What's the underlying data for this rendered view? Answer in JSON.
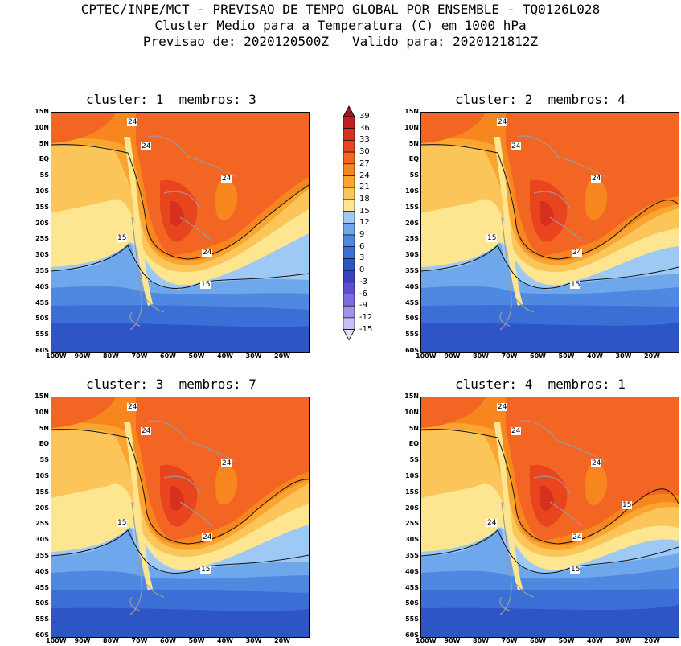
{
  "header": {
    "line1": "CPTEC/INPE/MCT - PREVISAO DE TEMPO GLOBAL POR ENSEMBLE - TQ0126L028",
    "line2": "Cluster Medio para a Temperatura (C) em 1000 hPa",
    "line3": "Previsao de: 2020120500Z   Valido para: 2020121812Z"
  },
  "panels": [
    {
      "title": "cluster: 1  membros: 3",
      "contour_labels": [
        "24",
        "24",
        "24",
        "24",
        "15",
        "15"
      ]
    },
    {
      "title": "cluster: 2  membros: 4",
      "contour_labels": [
        "24",
        "24",
        "24",
        "24",
        "15",
        "15"
      ]
    },
    {
      "title": "cluster: 3  membros: 7",
      "contour_labels": [
        "24",
        "24",
        "24",
        "24",
        "15",
        "15"
      ]
    },
    {
      "title": "cluster: 4  membros: 1",
      "contour_labels": [
        "24",
        "24",
        "24",
        "24",
        "24",
        "15",
        "15"
      ]
    }
  ],
  "lat_ticks": [
    "15N",
    "10N",
    "5N",
    "EQ",
    "5S",
    "10S",
    "15S",
    "20S",
    "25S",
    "30S",
    "35S",
    "40S",
    "45S",
    "50S",
    "55S",
    "60S"
  ],
  "lon_ticks": [
    "100W",
    "90W",
    "80W",
    "70W",
    "60W",
    "50W",
    "40W",
    "30W",
    "20W"
  ],
  "colorbar": {
    "levels": [
      "39",
      "36",
      "33",
      "30",
      "27",
      "24",
      "21",
      "18",
      "15",
      "12",
      "9",
      "6",
      "3",
      "0",
      "-3",
      "-6",
      "-9",
      "-12",
      "-15"
    ],
    "colors": [
      "#a5171e",
      "#c21f1f",
      "#d7301f",
      "#e8451f",
      "#f26522",
      "#f7861e",
      "#f9a52f",
      "#fbc55a",
      "#fde68f",
      "#9ec9f5",
      "#6fa7ec",
      "#4f88e0",
      "#3b6fd6",
      "#2d55c6",
      "#3a3fbf",
      "#5a4fcf",
      "#7c6be0",
      "#a392ec",
      "#c9bff5",
      "#e4dffa"
    ]
  }
}
